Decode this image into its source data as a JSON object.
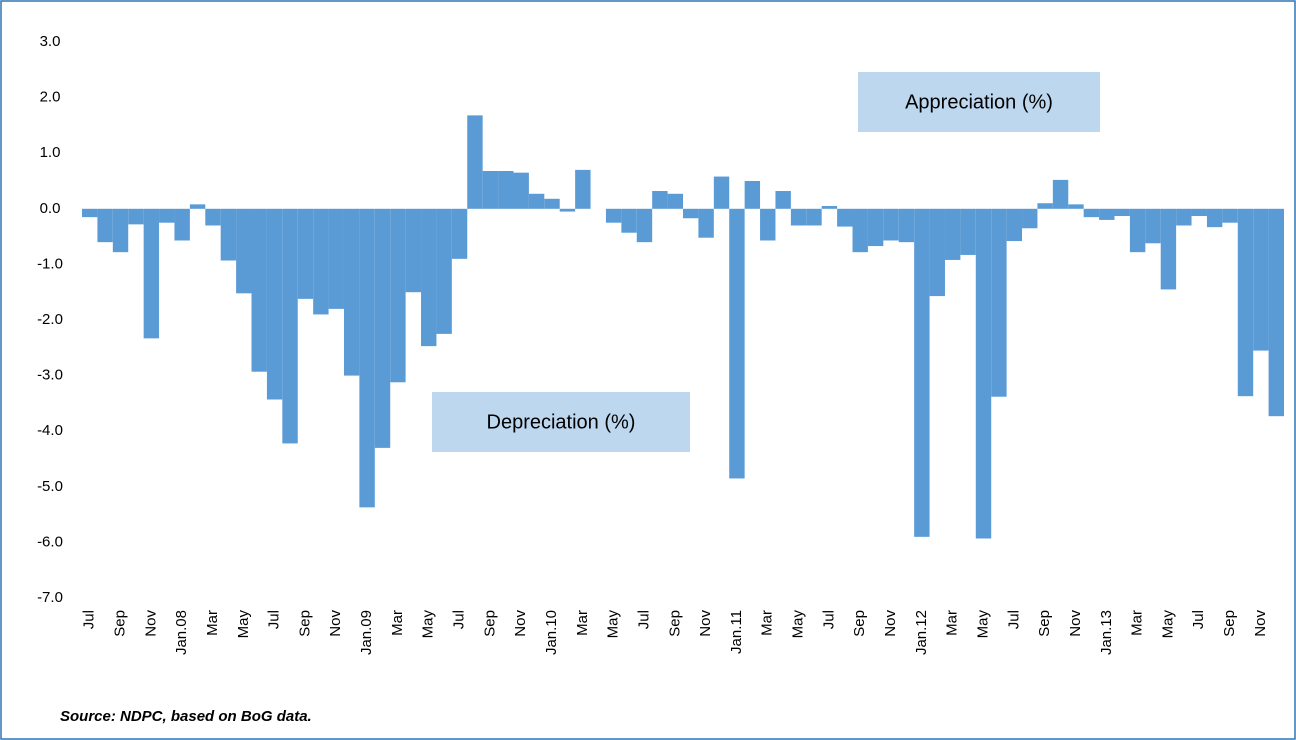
{
  "chart_data": {
    "type": "bar",
    "categories": [
      "Jul",
      null,
      "Sep",
      null,
      "Nov",
      null,
      "Jan.08",
      null,
      "Mar",
      null,
      "May",
      null,
      "Jul",
      null,
      "Sep",
      null,
      "Nov",
      null,
      "Jan.09",
      null,
      "Mar",
      null,
      "May",
      null,
      "Jul",
      null,
      "Sep",
      null,
      "Nov",
      null,
      "Jan.10",
      null,
      "Mar",
      null,
      "May",
      null,
      "Jul",
      null,
      "Sep",
      null,
      "Nov",
      null,
      "Jan.11",
      null,
      "Mar",
      null,
      "May",
      null,
      "Jul",
      null,
      "Sep",
      null,
      "Nov",
      null,
      "Jan.12",
      null,
      "Mar",
      null,
      "May",
      null,
      "Jul",
      null,
      "Sep",
      null,
      "Nov",
      null,
      "Jan.13",
      null,
      "Mar",
      null,
      "May",
      null,
      "Jul",
      null,
      "Sep",
      null,
      "Nov",
      null
    ],
    "values": [
      -0.15,
      -0.6,
      -0.78,
      -0.28,
      -2.33,
      -0.25,
      -0.57,
      0.08,
      -0.3,
      -0.93,
      -1.52,
      -2.93,
      -3.43,
      -4.22,
      -1.62,
      -1.9,
      -1.8,
      -3.0,
      -5.37,
      -4.3,
      -3.12,
      -1.5,
      -2.47,
      -2.25,
      -0.9,
      1.68,
      0.68,
      0.68,
      0.65,
      0.27,
      0.18,
      -0.05,
      0.7,
      0.0,
      -0.25,
      -0.43,
      -0.6,
      0.32,
      0.27,
      -0.17,
      -0.52,
      0.58,
      -4.85,
      0.5,
      -0.57,
      0.32,
      -0.3,
      -0.3,
      0.05,
      -0.32,
      -0.78,
      -0.67,
      -0.57,
      -0.6,
      -5.9,
      -1.57,
      -0.92,
      -0.83,
      -5.93,
      -3.38,
      -0.58,
      -0.35,
      0.1,
      0.52,
      0.08,
      -0.15,
      -0.2,
      -0.13,
      -0.78,
      -0.62,
      -1.45,
      -0.3,
      -0.13,
      -0.33,
      -0.25,
      -3.37,
      -2.55,
      -3.73
    ],
    "color": "#5b9bd5",
    "ylim": [
      -7,
      3
    ],
    "yticks": [
      {
        "value": 3,
        "label": "3.0"
      },
      {
        "value": 2,
        "label": "2.0"
      },
      {
        "value": 1,
        "label": "1.0"
      },
      {
        "value": 0,
        "label": "0.0"
      },
      {
        "value": -1,
        "label": "-1.0"
      },
      {
        "value": -2,
        "label": "-2.0"
      },
      {
        "value": -3,
        "label": "-3.0"
      },
      {
        "value": -4,
        "label": "-4.0"
      },
      {
        "value": -5,
        "label": "-5.0"
      },
      {
        "value": -6,
        "label": "-6.0"
      },
      {
        "value": -7,
        "label": "-7.0"
      }
    ],
    "grid": false,
    "annotations": [
      "Appreciation (%)",
      "Depreciation (%)"
    ],
    "source": "Source:  NDPC, based on BoG data."
  }
}
